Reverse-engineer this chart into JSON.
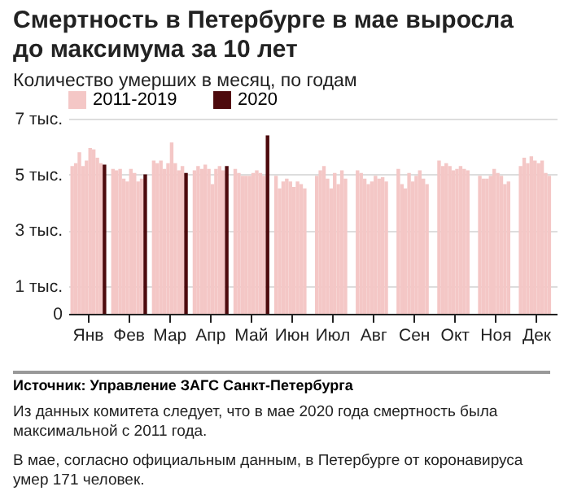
{
  "chart_data": {
    "type": "bar",
    "title": "Смертность в Петербурге в мае выросла до максимума за 10 лет",
    "subtitle": "Количество умерших в месяц, по годам",
    "categories": [
      "Янв",
      "Фев",
      "Мар",
      "Апр",
      "Май",
      "Июн",
      "Июл",
      "Авг",
      "Сен",
      "Окт",
      "Ноя",
      "Дек"
    ],
    "series": [
      {
        "name": "2011-2019",
        "color": "#f4c7c6",
        "values": [
          5.3,
          5.2,
          5.5,
          5.15,
          5.2,
          4.95,
          4.95,
          5.15,
          5.2,
          5.5,
          4.95,
          5.3
        ]
      },
      {
        "color": "#f4c7c6",
        "values": [
          5.4,
          5.15,
          5.4,
          5.3,
          5.05,
          4.5,
          5.15,
          5.05,
          4.65,
          5.3,
          4.85,
          5.6
        ]
      },
      {
        "color": "#f4c7c6",
        "values": [
          5.8,
          5.2,
          5.5,
          5.2,
          4.95,
          4.75,
          5.3,
          4.85,
          4.5,
          5.4,
          4.85,
          5.4
        ]
      },
      {
        "color": "#f4c7c6",
        "values": [
          5.3,
          4.85,
          5.2,
          5.35,
          4.95,
          4.85,
          4.85,
          4.65,
          5.05,
          5.3,
          4.95,
          5.65
        ]
      },
      {
        "color": "#f4c7c6",
        "values": [
          5.5,
          4.75,
          5.4,
          5.2,
          4.95,
          4.75,
          4.5,
          4.75,
          4.75,
          5.15,
          5.2,
          5.5
        ]
      },
      {
        "color": "#f4c7c6",
        "values": [
          5.95,
          5.2,
          6.15,
          4.65,
          5.05,
          4.55,
          5.05,
          4.95,
          4.95,
          5.2,
          5.05,
          5.4
        ]
      },
      {
        "color": "#f4c7c6",
        "values": [
          5.9,
          5.05,
          5.4,
          5.2,
          5.15,
          4.75,
          4.65,
          4.85,
          5.15,
          5.3,
          4.95,
          5.5
        ]
      },
      {
        "color": "#f4c7c6",
        "values": [
          5.6,
          4.75,
          5.15,
          5.3,
          5.05,
          4.65,
          5.15,
          4.9,
          4.85,
          5.2,
          4.65,
          5.05
        ]
      },
      {
        "color": "#f4c7c6",
        "values": [
          5.4,
          4.85,
          5.3,
          5.15,
          4.95,
          4.5,
          4.85,
          4.75,
          4.65,
          5.15,
          4.75,
          4.95
        ]
      },
      {
        "name": "2020",
        "color": "#4d0a0d",
        "values": [
          5.35,
          5.0,
          5.05,
          5.3,
          6.4,
          null,
          null,
          null,
          null,
          null,
          null,
          null
        ]
      }
    ],
    "ylim": [
      0,
      7
    ],
    "yticks": [
      0,
      {
        "value": 1,
        "label": "1 тыс."
      },
      {
        "value": 3,
        "label": "3 тыс."
      },
      {
        "value": 5,
        "label": "5 тыс."
      },
      {
        "value": 7,
        "label": "7 тыс."
      }
    ],
    "grid": "y",
    "legend": "top left",
    "annotations": [
      "Источник: Управление ЗАГС Санкт-Петербурга",
      "Из данных комитета следует, что в мае 2020 года смертность была максимальной с 2011 года.",
      "В мае, согласно официальным данным, в Петербурге от коронавируса умер 171 человек."
    ]
  }
}
